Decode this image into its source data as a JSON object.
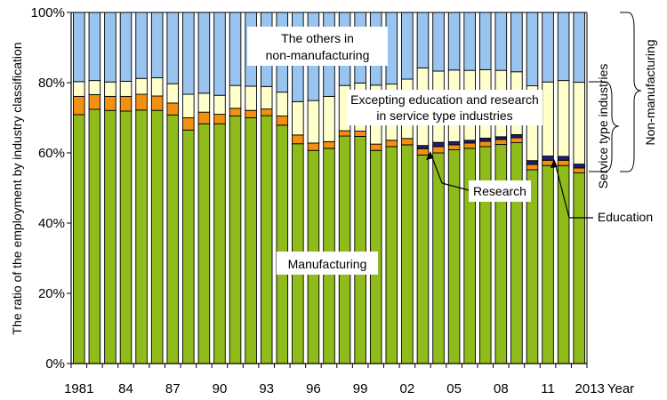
{
  "chart_data": {
    "type": "bar",
    "stacked": true,
    "percent": true,
    "title": "",
    "ylabel": "The ratio of the employment by industry classification",
    "xlabel": "Year",
    "ylim": [
      0,
      100
    ],
    "yticks": [
      "0%",
      "20%",
      "40%",
      "60%",
      "80%",
      "100%"
    ],
    "xtick_labels": [
      {
        "index": 0,
        "label": "1981"
      },
      {
        "index": 3,
        "label": "84"
      },
      {
        "index": 6,
        "label": "87"
      },
      {
        "index": 9,
        "label": "90"
      },
      {
        "index": 12,
        "label": "93"
      },
      {
        "index": 15,
        "label": "96"
      },
      {
        "index": 18,
        "label": "99"
      },
      {
        "index": 21,
        "label": "02"
      },
      {
        "index": 24,
        "label": "05"
      },
      {
        "index": 27,
        "label": "08"
      },
      {
        "index": 30,
        "label": "11"
      },
      {
        "index": 32,
        "label": "2013"
      }
    ],
    "categories": [
      "1981",
      "1982",
      "1983",
      "1984",
      "1985",
      "1986",
      "1987",
      "1988",
      "1989",
      "1990",
      "1991",
      "1992",
      "1993",
      "1994",
      "1995",
      "1996",
      "1997",
      "1998",
      "1999",
      "2000",
      "2001",
      "2002",
      "2003",
      "2004",
      "2005",
      "2006",
      "2007",
      "2008",
      "2009",
      "2010",
      "2011",
      "2012",
      "2013"
    ],
    "series": [
      {
        "name": "Manufacturing",
        "color": "#8fbc1a",
        "values": [
          70.9,
          72.4,
          72.1,
          71.9,
          72.2,
          72.1,
          70.8,
          66.5,
          68.3,
          68.3,
          70.5,
          70.0,
          70.6,
          67.9,
          62.6,
          60.7,
          61.3,
          64.8,
          64.7,
          60.7,
          61.8,
          62.3,
          59.4,
          60.0,
          60.9,
          61.3,
          61.8,
          62.4,
          62.9,
          55.2,
          56.4,
          56.4,
          54.3
        ]
      },
      {
        "name": "Education",
        "color": "#f39010",
        "values": [
          5.2,
          4.2,
          4.0,
          4.2,
          4.5,
          4.1,
          3.4,
          3.5,
          3.3,
          2.7,
          2.2,
          2.1,
          1.9,
          2.6,
          2.5,
          2.1,
          1.9,
          1.5,
          1.5,
          1.8,
          1.8,
          1.8,
          1.8,
          1.8,
          1.4,
          1.5,
          1.5,
          1.4,
          1.4,
          1.5,
          1.5,
          1.5,
          1.4
        ]
      },
      {
        "name": "Research",
        "color": "#1c1c7a",
        "values": [
          0,
          0,
          0,
          0,
          0,
          0,
          0,
          0,
          0,
          0,
          0,
          0,
          0,
          0,
          0,
          0,
          0,
          0,
          0,
          0,
          0,
          0,
          0.9,
          1.2,
          0.9,
          0.8,
          0.9,
          0.8,
          0.9,
          1.1,
          1.2,
          1.1,
          1.1
        ]
      },
      {
        "name": "Excepting education and research in service type industries",
        "color": "#ffffcc",
        "values": [
          4.2,
          4.0,
          4.1,
          4.3,
          4.5,
          5.2,
          5.5,
          6.7,
          5.4,
          5.4,
          6.5,
          6.9,
          6.4,
          6.8,
          9.5,
          12.1,
          12.9,
          12.9,
          13.7,
          16.8,
          16.0,
          16.9,
          22.1,
          20.3,
          20.4,
          19.9,
          19.5,
          18.9,
          17.9,
          21.3,
          21.1,
          21.6,
          23.3
        ]
      },
      {
        "name": "The others in non-manufacturing",
        "color": "#99c4f0",
        "values": [
          19.7,
          19.4,
          19.8,
          19.6,
          18.8,
          18.6,
          20.3,
          23.3,
          23.0,
          23.6,
          20.8,
          21.0,
          21.1,
          22.7,
          25.4,
          25.1,
          23.9,
          20.8,
          20.1,
          20.7,
          20.4,
          19.0,
          15.8,
          16.7,
          16.4,
          16.5,
          16.3,
          16.5,
          16.9,
          20.9,
          19.8,
          19.4,
          19.9
        ]
      }
    ],
    "annotations": {
      "others": [
        "The others in",
        "non-manufacturing"
      ],
      "excepting": [
        "Excepting education and research",
        "in service type industries"
      ],
      "manufacturing": "Manufacturing",
      "research": "Research",
      "education": "Education",
      "service_type_industries": "Service type industries",
      "non_manufacturing": "Non-manufacturing"
    }
  }
}
